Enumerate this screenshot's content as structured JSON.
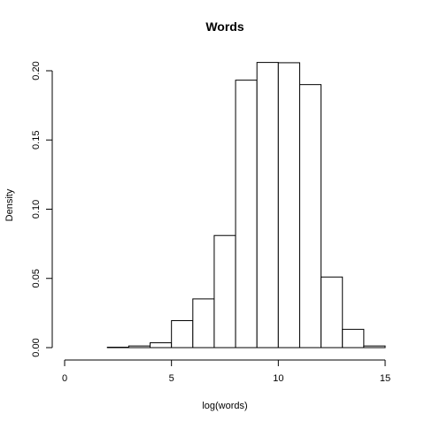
{
  "chart_data": {
    "type": "bar",
    "subtype": "histogram",
    "title": "Words",
    "xlabel": "log(words)",
    "ylabel": "Density",
    "bin_edges": [
      0,
      1,
      2,
      3,
      4,
      5,
      6,
      7,
      8,
      9,
      10,
      11,
      12,
      13,
      14,
      15
    ],
    "values": [
      0,
      0,
      0.0003,
      0.0012,
      0.0035,
      0.0195,
      0.0352,
      0.081,
      0.1932,
      0.206,
      0.2058,
      0.19,
      0.051,
      0.0132,
      0.0012
    ],
    "xlim": [
      0,
      15
    ],
    "ylim": [
      0,
      0.21
    ],
    "xticks": [
      0,
      5,
      10,
      15
    ],
    "xtick_labels": [
      "0",
      "5",
      "10",
      "15"
    ],
    "yticks": [
      0,
      0.05,
      0.1,
      0.15,
      0.2
    ],
    "ytick_labels": [
      "0.00",
      "0.05",
      "0.10",
      "0.15",
      "0.20"
    ],
    "grid": false,
    "legend": "none",
    "colors": {
      "bar_fill": "#ffffff",
      "bar_stroke": "#000000",
      "axis": "#000000",
      "background": "#ffffff"
    }
  }
}
